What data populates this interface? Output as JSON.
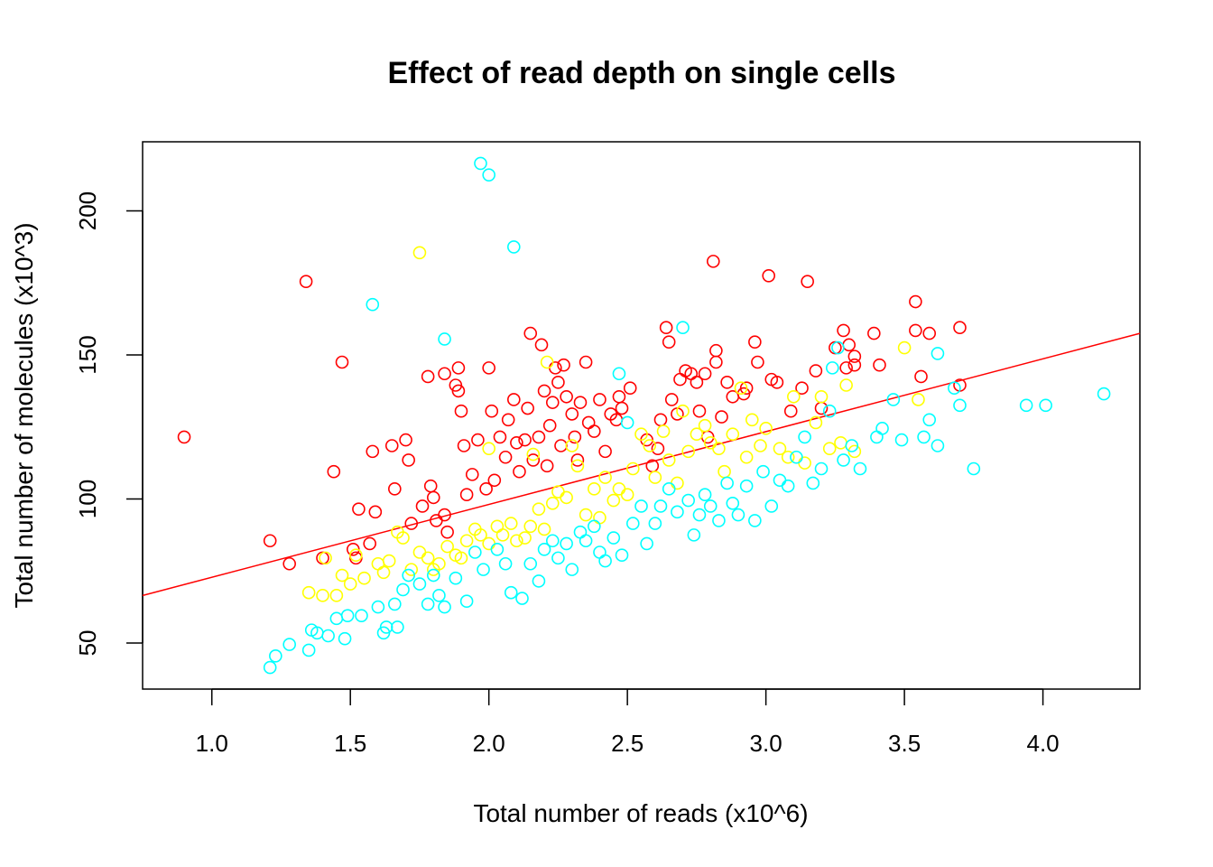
{
  "chart_data": {
    "type": "scatter",
    "title": "Effect of read depth on single cells",
    "xlabel": "Total number of reads (x10^6)",
    "ylabel": "Total number of molecules (x10^3)",
    "xlim": [
      0.75,
      4.35
    ],
    "ylim": [
      34,
      224
    ],
    "xticks": [
      1.0,
      1.5,
      2.0,
      2.5,
      3.0,
      3.5,
      4.0
    ],
    "xtick_labels": [
      "1.0",
      "1.5",
      "2.0",
      "2.5",
      "3.0",
      "3.5",
      "4.0"
    ],
    "yticks": [
      50,
      100,
      150,
      200
    ],
    "ytick_labels": [
      "50",
      "100",
      "150",
      "200"
    ],
    "grid": false,
    "legend": "none",
    "series": [
      {
        "color": "#ff0000",
        "points": [
          [
            0.9,
            121.5
          ],
          [
            1.21,
            85.5
          ],
          [
            1.28,
            77.5
          ],
          [
            1.34,
            175.5
          ],
          [
            1.4,
            79.5
          ],
          [
            1.44,
            109.5
          ],
          [
            1.47,
            147.5
          ],
          [
            1.51,
            82.5
          ],
          [
            1.52,
            79.5
          ],
          [
            1.53,
            96.5
          ],
          [
            1.57,
            84.5
          ],
          [
            1.58,
            116.5
          ],
          [
            1.59,
            95.5
          ],
          [
            1.65,
            118.5
          ],
          [
            1.66,
            103.5
          ],
          [
            1.7,
            120.5
          ],
          [
            1.71,
            113.5
          ],
          [
            1.72,
            91.5
          ],
          [
            1.76,
            97.5
          ],
          [
            1.78,
            142.5
          ],
          [
            1.79,
            104.5
          ],
          [
            1.8,
            100.5
          ],
          [
            1.81,
            92.5
          ],
          [
            1.84,
            143.5
          ],
          [
            1.84,
            94.5
          ],
          [
            1.85,
            88.5
          ],
          [
            1.88,
            139.5
          ],
          [
            1.89,
            145.5
          ],
          [
            1.89,
            137.5
          ],
          [
            1.9,
            130.5
          ],
          [
            1.91,
            118.5
          ],
          [
            1.92,
            101.5
          ],
          [
            1.94,
            108.5
          ],
          [
            1.96,
            120.5
          ],
          [
            1.99,
            103.5
          ],
          [
            2.0,
            145.5
          ],
          [
            2.01,
            130.5
          ],
          [
            2.02,
            106.5
          ],
          [
            2.04,
            121.5
          ],
          [
            2.06,
            114.5
          ],
          [
            2.07,
            127.5
          ],
          [
            2.09,
            134.5
          ],
          [
            2.1,
            119.5
          ],
          [
            2.11,
            109.5
          ],
          [
            2.13,
            120.5
          ],
          [
            2.14,
            131.5
          ],
          [
            2.15,
            157.5
          ],
          [
            2.16,
            113.5
          ],
          [
            2.18,
            121.5
          ],
          [
            2.19,
            153.5
          ],
          [
            2.2,
            137.5
          ],
          [
            2.21,
            111.5
          ],
          [
            2.22,
            125.5
          ],
          [
            2.23,
            133.5
          ],
          [
            2.24,
            145.5
          ],
          [
            2.25,
            140.5
          ],
          [
            2.26,
            118.5
          ],
          [
            2.27,
            146.5
          ],
          [
            2.28,
            135.5
          ],
          [
            2.3,
            129.5
          ],
          [
            2.31,
            121.5
          ],
          [
            2.32,
            113.5
          ],
          [
            2.33,
            133.5
          ],
          [
            2.35,
            147.5
          ],
          [
            2.36,
            126.5
          ],
          [
            2.38,
            123.5
          ],
          [
            2.4,
            134.5
          ],
          [
            2.42,
            116.5
          ],
          [
            2.44,
            129.5
          ],
          [
            2.46,
            127.5
          ],
          [
            2.47,
            135.5
          ],
          [
            2.48,
            131.5
          ],
          [
            2.51,
            138.5
          ],
          [
            2.57,
            120.5
          ],
          [
            2.59,
            111.5
          ],
          [
            2.61,
            117.5
          ],
          [
            2.62,
            127.5
          ],
          [
            2.64,
            159.5
          ],
          [
            2.65,
            154.5
          ],
          [
            2.66,
            134.5
          ],
          [
            2.68,
            129.5
          ],
          [
            2.69,
            141.5
          ],
          [
            2.71,
            144.5
          ],
          [
            2.73,
            143.5
          ],
          [
            2.75,
            140.5
          ],
          [
            2.76,
            130.5
          ],
          [
            2.78,
            143.5
          ],
          [
            2.79,
            121.5
          ],
          [
            2.81,
            182.5
          ],
          [
            2.82,
            151.5
          ],
          [
            2.82,
            147.5
          ],
          [
            2.84,
            128.5
          ],
          [
            2.86,
            140.5
          ],
          [
            2.88,
            135.5
          ],
          [
            2.92,
            136.5
          ],
          [
            2.93,
            138.5
          ],
          [
            2.96,
            154.5
          ],
          [
            2.97,
            147.5
          ],
          [
            3.01,
            177.5
          ],
          [
            3.02,
            141.5
          ],
          [
            3.04,
            140.5
          ],
          [
            3.09,
            130.5
          ],
          [
            3.13,
            138.5
          ],
          [
            3.15,
            175.5
          ],
          [
            3.18,
            144.5
          ],
          [
            3.2,
            131.5
          ],
          [
            3.25,
            152.5
          ],
          [
            3.28,
            158.5
          ],
          [
            3.29,
            145.5
          ],
          [
            3.3,
            153.5
          ],
          [
            3.32,
            149.5
          ],
          [
            3.32,
            146.5
          ],
          [
            3.39,
            157.5
          ],
          [
            3.41,
            146.5
          ],
          [
            3.54,
            168.5
          ],
          [
            3.54,
            158.5
          ],
          [
            3.56,
            142.5
          ],
          [
            3.59,
            157.5
          ],
          [
            3.7,
            159.5
          ],
          [
            3.7,
            139.5
          ]
        ]
      },
      {
        "color": "#ffff00",
        "points": [
          [
            1.35,
            67.5
          ],
          [
            1.4,
            66.5
          ],
          [
            1.41,
            79.5
          ],
          [
            1.45,
            66.5
          ],
          [
            1.47,
            73.5
          ],
          [
            1.5,
            70.5
          ],
          [
            1.52,
            80.5
          ],
          [
            1.55,
            72.5
          ],
          [
            1.6,
            77.5
          ],
          [
            1.62,
            74.5
          ],
          [
            1.64,
            78.5
          ],
          [
            1.67,
            88.5
          ],
          [
            1.69,
            86.5
          ],
          [
            1.72,
            75.5
          ],
          [
            1.75,
            81.5
          ],
          [
            1.75,
            185.5
          ],
          [
            1.78,
            79.5
          ],
          [
            1.8,
            75.5
          ],
          [
            1.82,
            77.5
          ],
          [
            1.85,
            83.5
          ],
          [
            1.88,
            80.5
          ],
          [
            1.9,
            79.5
          ],
          [
            1.92,
            85.5
          ],
          [
            1.95,
            89.5
          ],
          [
            1.97,
            87.5
          ],
          [
            2.0,
            117.5
          ],
          [
            2.0,
            84.5
          ],
          [
            2.03,
            90.5
          ],
          [
            2.05,
            87.5
          ],
          [
            2.08,
            91.5
          ],
          [
            2.1,
            85.5
          ],
          [
            2.13,
            86.5
          ],
          [
            2.15,
            90.5
          ],
          [
            2.16,
            115.5
          ],
          [
            2.18,
            96.5
          ],
          [
            2.2,
            89.5
          ],
          [
            2.21,
            147.5
          ],
          [
            2.23,
            98.5
          ],
          [
            2.25,
            102.5
          ],
          [
            2.28,
            100.5
          ],
          [
            2.3,
            118.5
          ],
          [
            2.32,
            111.5
          ],
          [
            2.35,
            94.5
          ],
          [
            2.38,
            103.5
          ],
          [
            2.4,
            93.5
          ],
          [
            2.42,
            107.5
          ],
          [
            2.45,
            99.5
          ],
          [
            2.47,
            103.5
          ],
          [
            2.5,
            101.5
          ],
          [
            2.52,
            110.5
          ],
          [
            2.55,
            122.5
          ],
          [
            2.58,
            118.5
          ],
          [
            2.6,
            107.5
          ],
          [
            2.63,
            123.5
          ],
          [
            2.65,
            113.5
          ],
          [
            2.68,
            105.5
          ],
          [
            2.7,
            130.5
          ],
          [
            2.72,
            116.5
          ],
          [
            2.75,
            122.5
          ],
          [
            2.78,
            125.5
          ],
          [
            2.8,
            119.5
          ],
          [
            2.83,
            117.5
          ],
          [
            2.85,
            109.5
          ],
          [
            2.88,
            122.5
          ],
          [
            2.91,
            138.5
          ],
          [
            2.93,
            114.5
          ],
          [
            2.95,
            127.5
          ],
          [
            2.98,
            118.5
          ],
          [
            3.0,
            124.5
          ],
          [
            3.05,
            117.5
          ],
          [
            3.08,
            114.5
          ],
          [
            3.1,
            135.5
          ],
          [
            3.14,
            112.5
          ],
          [
            3.18,
            126.5
          ],
          [
            3.2,
            135.5
          ],
          [
            3.23,
            117.5
          ],
          [
            3.27,
            119.5
          ],
          [
            3.29,
            139.5
          ],
          [
            3.32,
            116.5
          ],
          [
            3.5,
            152.5
          ],
          [
            3.55,
            134.5
          ]
        ]
      },
      {
        "color": "#00ffff",
        "points": [
          [
            1.21,
            41.5
          ],
          [
            1.23,
            45.5
          ],
          [
            1.28,
            49.5
          ],
          [
            1.35,
            47.5
          ],
          [
            1.36,
            54.5
          ],
          [
            1.38,
            53.5
          ],
          [
            1.42,
            52.5
          ],
          [
            1.45,
            58.5
          ],
          [
            1.48,
            51.5
          ],
          [
            1.49,
            59.5
          ],
          [
            1.54,
            59.5
          ],
          [
            1.58,
            167.5
          ],
          [
            1.6,
            62.5
          ],
          [
            1.62,
            53.5
          ],
          [
            1.63,
            55.5
          ],
          [
            1.66,
            63.5
          ],
          [
            1.67,
            55.5
          ],
          [
            1.69,
            68.5
          ],
          [
            1.71,
            73.5
          ],
          [
            1.75,
            70.5
          ],
          [
            1.78,
            63.5
          ],
          [
            1.8,
            73.5
          ],
          [
            1.82,
            66.5
          ],
          [
            1.84,
            62.5
          ],
          [
            1.84,
            155.5
          ],
          [
            1.88,
            72.5
          ],
          [
            1.92,
            64.5
          ],
          [
            1.95,
            81.5
          ],
          [
            1.97,
            216.5
          ],
          [
            1.98,
            75.5
          ],
          [
            2.0,
            212.5
          ],
          [
            2.03,
            82.5
          ],
          [
            2.06,
            77.5
          ],
          [
            2.08,
            67.5
          ],
          [
            2.09,
            187.5
          ],
          [
            2.12,
            65.5
          ],
          [
            2.15,
            77.5
          ],
          [
            2.18,
            71.5
          ],
          [
            2.2,
            82.5
          ],
          [
            2.23,
            85.5
          ],
          [
            2.25,
            79.5
          ],
          [
            2.28,
            84.5
          ],
          [
            2.3,
            75.5
          ],
          [
            2.33,
            88.5
          ],
          [
            2.35,
            85.5
          ],
          [
            2.38,
            90.5
          ],
          [
            2.4,
            81.5
          ],
          [
            2.42,
            78.5
          ],
          [
            2.45,
            86.5
          ],
          [
            2.47,
            143.5
          ],
          [
            2.48,
            80.5
          ],
          [
            2.5,
            126.5
          ],
          [
            2.52,
            91.5
          ],
          [
            2.55,
            97.5
          ],
          [
            2.57,
            84.5
          ],
          [
            2.6,
            91.5
          ],
          [
            2.62,
            97.5
          ],
          [
            2.65,
            103.5
          ],
          [
            2.68,
            95.5
          ],
          [
            2.7,
            159.5
          ],
          [
            2.72,
            99.5
          ],
          [
            2.74,
            87.5
          ],
          [
            2.76,
            94.5
          ],
          [
            2.78,
            101.5
          ],
          [
            2.8,
            97.5
          ],
          [
            2.83,
            92.5
          ],
          [
            2.86,
            105.5
          ],
          [
            2.88,
            98.5
          ],
          [
            2.9,
            94.5
          ],
          [
            2.93,
            104.5
          ],
          [
            2.96,
            92.5
          ],
          [
            2.99,
            109.5
          ],
          [
            3.02,
            97.5
          ],
          [
            3.05,
            106.5
          ],
          [
            3.08,
            104.5
          ],
          [
            3.11,
            114.5
          ],
          [
            3.14,
            121.5
          ],
          [
            3.17,
            105.5
          ],
          [
            3.2,
            110.5
          ],
          [
            3.23,
            130.5
          ],
          [
            3.24,
            145.5
          ],
          [
            3.26,
            152.5
          ],
          [
            3.28,
            113.5
          ],
          [
            3.31,
            118.5
          ],
          [
            3.34,
            110.5
          ],
          [
            3.4,
            121.5
          ],
          [
            3.42,
            124.5
          ],
          [
            3.46,
            134.5
          ],
          [
            3.49,
            120.5
          ],
          [
            3.57,
            121.5
          ],
          [
            3.59,
            127.5
          ],
          [
            3.62,
            150.5
          ],
          [
            3.62,
            118.5
          ],
          [
            3.68,
            138.5
          ],
          [
            3.7,
            132.5
          ],
          [
            3.75,
            110.5
          ],
          [
            3.94,
            132.5
          ],
          [
            4.01,
            132.5
          ],
          [
            4.22,
            136.5
          ]
        ]
      }
    ],
    "fit_line": {
      "color": "#ff0000",
      "from": [
        0.75,
        66.5
      ],
      "to": [
        4.35,
        157.5
      ]
    }
  }
}
